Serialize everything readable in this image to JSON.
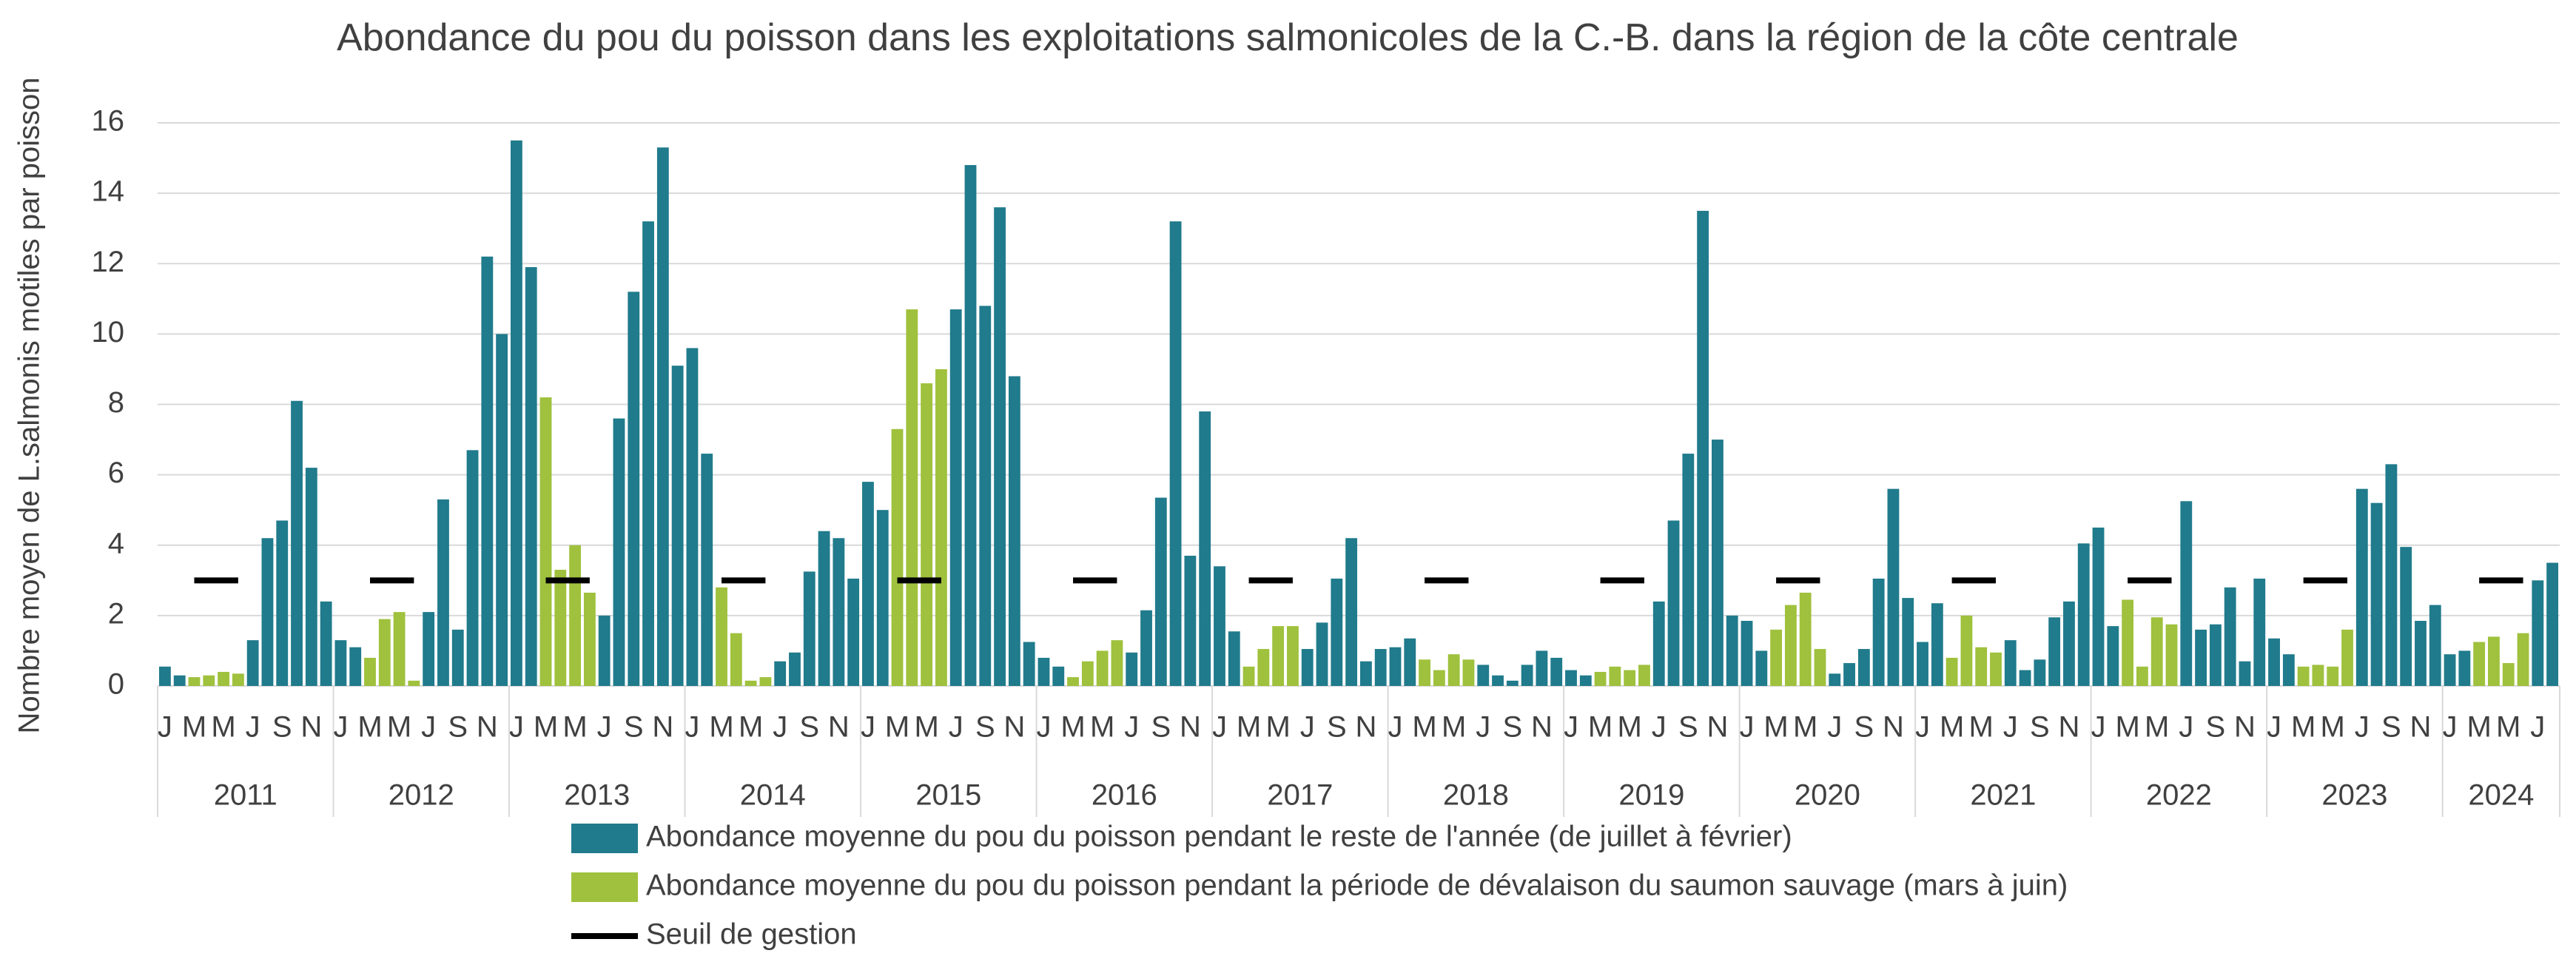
{
  "chart_data": {
    "type": "bar",
    "title": "Abondance du pou du poisson dans les exploitations salmonicoles de la C.-B. dans la région de la côte centrale",
    "y_label": "Nombre moyen de L.salmonis motiles par poisson",
    "categories": [
      "J",
      null,
      "M",
      null,
      "M",
      null,
      "J",
      null,
      "S",
      null,
      "N",
      null,
      "J",
      null,
      "M",
      null,
      "M",
      null,
      "J",
      null,
      "S",
      null,
      "N",
      null,
      "J",
      null,
      "M",
      null,
      "M",
      null,
      "J",
      null,
      "S",
      null,
      "N",
      null,
      "J",
      null,
      "M",
      null,
      "M",
      null,
      "J",
      null,
      "S",
      null,
      "N",
      null,
      "J",
      null,
      "M",
      null,
      "M",
      null,
      "J",
      null,
      "S",
      null,
      "N",
      null,
      "J",
      null,
      "M",
      null,
      "M",
      null,
      "J",
      null,
      "S",
      null,
      "N",
      null,
      "J",
      null,
      "M",
      null,
      "M",
      null,
      "J",
      null,
      "S",
      null,
      "N",
      null,
      "J",
      null,
      "M",
      null,
      "M",
      null,
      "J",
      null,
      "S",
      null,
      "N",
      null,
      "J",
      null,
      "M",
      null,
      "M",
      null,
      "J",
      null,
      "S",
      null,
      "N",
      null,
      "J",
      null,
      "M",
      null,
      "M",
      null,
      "J",
      null,
      "S",
      null,
      "N",
      null,
      "J",
      null,
      "M",
      null,
      "M",
      null,
      "J",
      null,
      "S",
      null,
      "N",
      null,
      "J",
      null,
      "M",
      null,
      "M",
      null,
      "J",
      null,
      "S",
      null,
      "N",
      null,
      "J",
      null,
      "M",
      null,
      "M",
      null,
      "J",
      null,
      "S",
      null,
      "N",
      null,
      "J",
      null,
      "M",
      null,
      "M",
      null,
      "J",
      null
    ],
    "category_groups": [
      "2011",
      "2012",
      "2013",
      "2014",
      "2015",
      "2016",
      "2017",
      "2018",
      "2019",
      "2020",
      "2021",
      "2022",
      "2023",
      "2024"
    ],
    "series": [
      {
        "name": "Abondance moyenne du pou du poisson pendant le reste de l'année (de juillet à février)",
        "color": "#207b8c",
        "type": "bar",
        "values": [
          0.55,
          0.3,
          null,
          null,
          null,
          null,
          1.3,
          4.2,
          4.7,
          8.1,
          6.2,
          2.4,
          1.3,
          1.1,
          null,
          null,
          null,
          null,
          2.1,
          5.3,
          1.6,
          6.7,
          12.2,
          10.0,
          15.5,
          11.9,
          null,
          null,
          null,
          null,
          2.0,
          7.6,
          11.2,
          13.2,
          15.3,
          9.1,
          9.6,
          6.6,
          null,
          null,
          null,
          null,
          0.7,
          0.95,
          3.25,
          4.4,
          4.2,
          3.05,
          5.8,
          5.0,
          null,
          null,
          null,
          null,
          10.7,
          14.8,
          10.8,
          13.6,
          8.8,
          1.25,
          0.8,
          0.55,
          null,
          null,
          null,
          null,
          0.95,
          2.15,
          5.35,
          13.2,
          3.7,
          7.8,
          3.4,
          1.55,
          null,
          null,
          null,
          null,
          1.05,
          1.8,
          3.05,
          4.2,
          0.7,
          1.05,
          1.1,
          1.35,
          null,
          null,
          null,
          null,
          0.6,
          0.3,
          0.15,
          0.6,
          1.0,
          0.8,
          0.45,
          0.3,
          null,
          null,
          null,
          null,
          2.4,
          4.7,
          6.6,
          13.5,
          7.0,
          2.0,
          1.85,
          1.0,
          null,
          null,
          null,
          null,
          0.35,
          0.65,
          1.05,
          3.05,
          5.6,
          2.5,
          1.25,
          2.35,
          null,
          null,
          null,
          null,
          1.3,
          0.45,
          0.75,
          1.95,
          2.4,
          4.05,
          4.5,
          1.7,
          null,
          null,
          null,
          null,
          5.25,
          1.6,
          1.75,
          2.8,
          0.7,
          3.05,
          1.35,
          0.9,
          null,
          null,
          null,
          null,
          5.6,
          5.2,
          6.3,
          3.95,
          1.85,
          2.3,
          0.9,
          1.0,
          null,
          null,
          null,
          null,
          3.0,
          3.5
        ]
      },
      {
        "name": "Abondance moyenne du pou du poisson pendant la période de dévalaison du saumon sauvage (mars à juin)",
        "color": "#9fc13d",
        "type": "bar",
        "values": [
          null,
          null,
          0.25,
          0.3,
          0.4,
          0.35,
          null,
          null,
          null,
          null,
          null,
          null,
          null,
          null,
          0.8,
          1.9,
          2.1,
          0.15,
          null,
          null,
          null,
          null,
          null,
          null,
          null,
          null,
          8.2,
          3.3,
          4.0,
          2.65,
          null,
          null,
          null,
          null,
          null,
          null,
          null,
          null,
          2.8,
          1.5,
          0.15,
          0.25,
          null,
          null,
          null,
          null,
          null,
          null,
          null,
          null,
          7.3,
          10.7,
          8.6,
          9.0,
          null,
          null,
          null,
          null,
          null,
          null,
          null,
          null,
          0.25,
          0.7,
          1.0,
          1.3,
          null,
          null,
          null,
          null,
          null,
          null,
          null,
          null,
          0.55,
          1.05,
          1.7,
          1.7,
          null,
          null,
          null,
          null,
          null,
          null,
          null,
          null,
          0.75,
          0.45,
          0.9,
          0.75,
          null,
          null,
          null,
          null,
          null,
          null,
          null,
          null,
          0.4,
          0.55,
          0.45,
          0.6,
          null,
          null,
          null,
          null,
          null,
          null,
          null,
          null,
          1.6,
          2.3,
          2.65,
          1.05,
          null,
          null,
          null,
          null,
          null,
          null,
          null,
          null,
          0.8,
          2.0,
          1.1,
          0.95,
          null,
          null,
          null,
          null,
          null,
          null,
          null,
          null,
          2.45,
          0.55,
          1.95,
          1.75,
          null,
          null,
          null,
          null,
          null,
          null,
          null,
          null,
          0.55,
          0.6,
          0.55,
          1.6,
          null,
          null,
          null,
          null,
          null,
          null,
          null,
          null,
          1.25,
          1.4,
          0.65,
          1.5,
          null,
          null
        ]
      },
      {
        "name": "Seuil de gestion",
        "color": "#000000",
        "type": "line",
        "values": [
          null,
          null,
          3,
          3,
          3,
          3,
          null,
          null,
          null,
          null,
          null,
          null,
          null,
          null,
          3,
          3,
          3,
          3,
          null,
          null,
          null,
          null,
          null,
          null,
          null,
          null,
          3,
          3,
          3,
          3,
          null,
          null,
          null,
          null,
          null,
          null,
          null,
          null,
          3,
          3,
          3,
          3,
          null,
          null,
          null,
          null,
          null,
          null,
          null,
          null,
          3,
          3,
          3,
          3,
          null,
          null,
          null,
          null,
          null,
          null,
          null,
          null,
          3,
          3,
          3,
          3,
          null,
          null,
          null,
          null,
          null,
          null,
          null,
          null,
          3,
          3,
          3,
          3,
          null,
          null,
          null,
          null,
          null,
          null,
          null,
          null,
          3,
          3,
          3,
          3,
          null,
          null,
          null,
          null,
          null,
          null,
          null,
          null,
          3,
          3,
          3,
          3,
          null,
          null,
          null,
          null,
          null,
          null,
          null,
          null,
          3,
          3,
          3,
          3,
          null,
          null,
          null,
          null,
          null,
          null,
          null,
          null,
          3,
          3,
          3,
          3,
          null,
          null,
          null,
          null,
          null,
          null,
          null,
          null,
          3,
          3,
          3,
          3,
          null,
          null,
          null,
          null,
          null,
          null,
          null,
          null,
          3,
          3,
          3,
          3,
          null,
          null,
          null,
          null,
          null,
          null,
          null,
          null,
          3,
          3,
          3,
          3,
          null,
          null
        ]
      }
    ],
    "ylim": [
      0,
      16
    ],
    "yticks": [
      0,
      2,
      4,
      6,
      8,
      10,
      12,
      14,
      16
    ],
    "grid": true
  }
}
